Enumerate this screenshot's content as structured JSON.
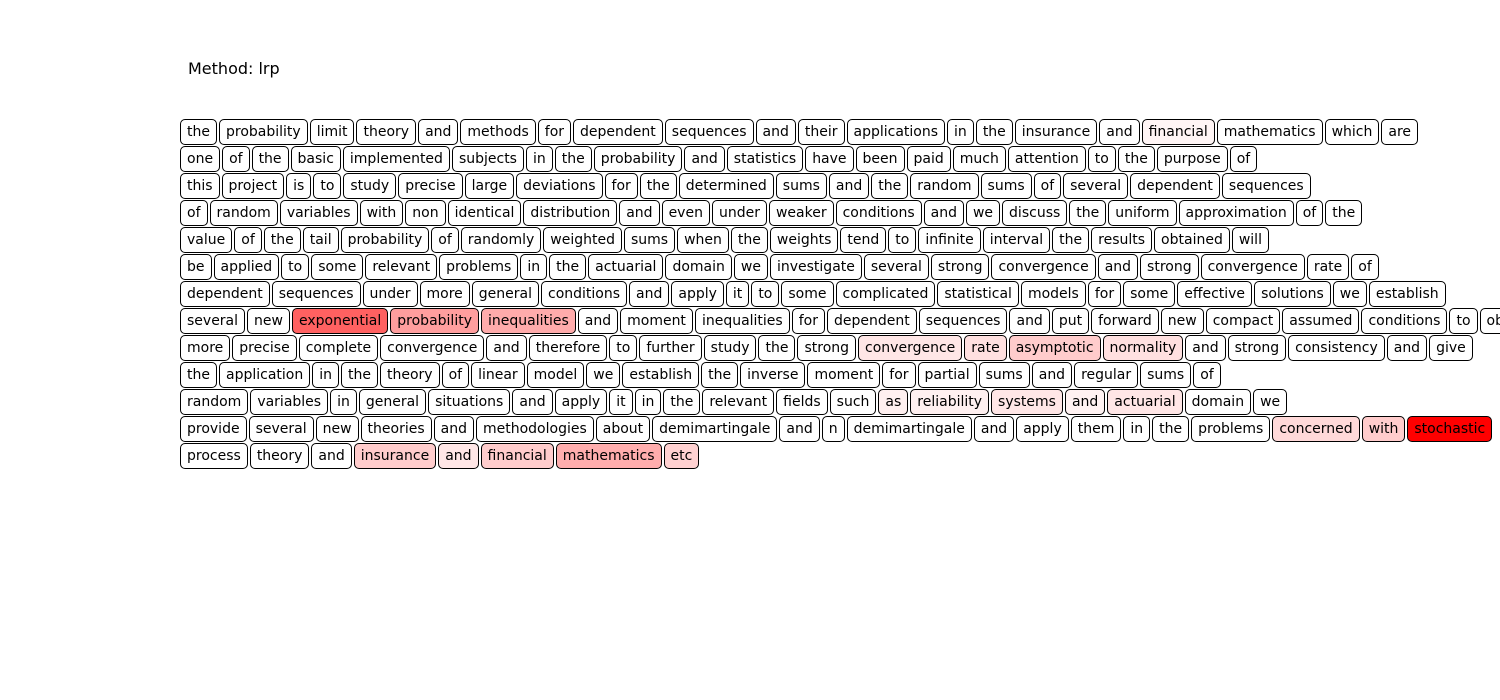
{
  "title": "Method: lrp",
  "rows": [
    [
      [
        "the",
        0
      ],
      [
        "probability",
        0
      ],
      [
        "limit",
        0
      ],
      [
        "theory",
        0
      ],
      [
        "and",
        0
      ],
      [
        "methods",
        0
      ],
      [
        "for",
        0
      ],
      [
        "dependent",
        0
      ],
      [
        "sequences",
        0
      ],
      [
        "and",
        0
      ],
      [
        "their",
        0
      ],
      [
        "applications",
        0
      ],
      [
        "in",
        0
      ],
      [
        "the",
        0
      ],
      [
        "insurance",
        0
      ],
      [
        "and",
        0
      ],
      [
        "financial",
        0.04
      ],
      [
        "mathematics",
        0
      ],
      [
        "which",
        0
      ],
      [
        "are",
        0
      ]
    ],
    [
      [
        "one",
        0
      ],
      [
        "of",
        0
      ],
      [
        "the",
        0
      ],
      [
        "basic",
        0
      ],
      [
        "implemented",
        0
      ],
      [
        "subjects",
        0
      ],
      [
        "in",
        0
      ],
      [
        "the",
        0
      ],
      [
        "probability",
        0
      ],
      [
        "and",
        0
      ],
      [
        "statistics",
        0
      ],
      [
        "have",
        0
      ],
      [
        "been",
        0
      ],
      [
        "paid",
        0
      ],
      [
        "much",
        0
      ],
      [
        "attention",
        0
      ],
      [
        "to",
        0
      ],
      [
        "the",
        0
      ],
      [
        "purpose",
        0
      ],
      [
        "of",
        0
      ]
    ],
    [
      [
        "this",
        0
      ],
      [
        "project",
        0
      ],
      [
        "is",
        0
      ],
      [
        "to",
        0
      ],
      [
        "study",
        0
      ],
      [
        "precise",
        0
      ],
      [
        "large",
        0
      ],
      [
        "deviations",
        0
      ],
      [
        "for",
        0
      ],
      [
        "the",
        0
      ],
      [
        "determined",
        0
      ],
      [
        "sums",
        0
      ],
      [
        "and",
        0
      ],
      [
        "the",
        0
      ],
      [
        "random",
        0
      ],
      [
        "sums",
        0
      ],
      [
        "of",
        0
      ],
      [
        "several",
        0
      ],
      [
        "dependent",
        0
      ],
      [
        "sequences",
        0
      ]
    ],
    [
      [
        "of",
        0
      ],
      [
        "random",
        0
      ],
      [
        "variables",
        0
      ],
      [
        "with",
        0
      ],
      [
        "non",
        0
      ],
      [
        "identical",
        0
      ],
      [
        "distribution",
        0
      ],
      [
        "and",
        0
      ],
      [
        "even",
        0
      ],
      [
        "under",
        0
      ],
      [
        "weaker",
        0
      ],
      [
        "conditions",
        0
      ],
      [
        "and",
        0
      ],
      [
        "we",
        0
      ],
      [
        "discuss",
        0
      ],
      [
        "the",
        0
      ],
      [
        "uniform",
        0
      ],
      [
        "approximation",
        0
      ],
      [
        "of",
        0
      ],
      [
        "the",
        0
      ]
    ],
    [
      [
        "value",
        0
      ],
      [
        "of",
        0
      ],
      [
        "the",
        0
      ],
      [
        "tail",
        0
      ],
      [
        "probability",
        0
      ],
      [
        "of",
        0
      ],
      [
        "randomly",
        0
      ],
      [
        "weighted",
        0
      ],
      [
        "sums",
        0
      ],
      [
        "when",
        0
      ],
      [
        "the",
        0
      ],
      [
        "weights",
        0
      ],
      [
        "tend",
        0
      ],
      [
        "to",
        0
      ],
      [
        "infinite",
        0
      ],
      [
        "interval",
        0
      ],
      [
        "the",
        0
      ],
      [
        "results",
        0
      ],
      [
        "obtained",
        0
      ],
      [
        "will",
        0
      ]
    ],
    [
      [
        "be",
        0
      ],
      [
        "applied",
        0
      ],
      [
        "to",
        0
      ],
      [
        "some",
        0
      ],
      [
        "relevant",
        0
      ],
      [
        "problems",
        0
      ],
      [
        "in",
        0
      ],
      [
        "the",
        0
      ],
      [
        "actuarial",
        0
      ],
      [
        "domain",
        0
      ],
      [
        "we",
        0
      ],
      [
        "investigate",
        0
      ],
      [
        "several",
        0
      ],
      [
        "strong",
        0
      ],
      [
        "convergence",
        0
      ],
      [
        "and",
        0
      ],
      [
        "strong",
        0
      ],
      [
        "convergence",
        0
      ],
      [
        "rate",
        0
      ],
      [
        "of",
        0
      ]
    ],
    [
      [
        "dependent",
        0
      ],
      [
        "sequences",
        0
      ],
      [
        "under",
        0
      ],
      [
        "more",
        0
      ],
      [
        "general",
        0
      ],
      [
        "conditions",
        0
      ],
      [
        "and",
        0
      ],
      [
        "apply",
        0
      ],
      [
        "it",
        0
      ],
      [
        "to",
        0
      ],
      [
        "some",
        0
      ],
      [
        "complicated",
        0
      ],
      [
        "statistical",
        0
      ],
      [
        "models",
        0
      ],
      [
        "for",
        0
      ],
      [
        "some",
        0
      ],
      [
        "effective",
        0
      ],
      [
        "solutions",
        0
      ],
      [
        "we",
        0
      ],
      [
        "establish",
        0
      ]
    ],
    [
      [
        "several",
        0
      ],
      [
        "new",
        0
      ],
      [
        "exponential",
        0.62
      ],
      [
        "probability",
        0.38
      ],
      [
        "inequalities",
        0.33
      ],
      [
        "and",
        0
      ],
      [
        "moment",
        0
      ],
      [
        "inequalities",
        0
      ],
      [
        "for",
        0
      ],
      [
        "dependent",
        0
      ],
      [
        "sequences",
        0
      ],
      [
        "and",
        0
      ],
      [
        "put",
        0
      ],
      [
        "forward",
        0
      ],
      [
        "new",
        0
      ],
      [
        "compact",
        0
      ],
      [
        "assumed",
        0
      ],
      [
        "conditions",
        0
      ],
      [
        "to",
        0
      ],
      [
        "obtain",
        0
      ]
    ],
    [
      [
        "more",
        0
      ],
      [
        "precise",
        0
      ],
      [
        "complete",
        0
      ],
      [
        "convergence",
        0
      ],
      [
        "and",
        0
      ],
      [
        "therefore",
        0
      ],
      [
        "to",
        0
      ],
      [
        "further",
        0
      ],
      [
        "study",
        0
      ],
      [
        "the",
        0
      ],
      [
        "strong",
        0
      ],
      [
        "convergence",
        0.1
      ],
      [
        "rate",
        0.12
      ],
      [
        "asymptotic",
        0.2
      ],
      [
        "normality",
        0.12
      ],
      [
        "and",
        0
      ],
      [
        "strong",
        0
      ],
      [
        "consistency",
        0
      ],
      [
        "and",
        0
      ],
      [
        "give",
        0
      ]
    ],
    [
      [
        "the",
        0
      ],
      [
        "application",
        0
      ],
      [
        "in",
        0
      ],
      [
        "the",
        0
      ],
      [
        "theory",
        0
      ],
      [
        "of",
        0
      ],
      [
        "linear",
        0
      ],
      [
        "model",
        0
      ],
      [
        "we",
        0
      ],
      [
        "establish",
        0
      ],
      [
        "the",
        0
      ],
      [
        "inverse",
        0
      ],
      [
        "moment",
        0
      ],
      [
        "for",
        0
      ],
      [
        "partial",
        0
      ],
      [
        "sums",
        0
      ],
      [
        "and",
        0
      ],
      [
        "regular",
        0
      ],
      [
        "sums",
        0
      ],
      [
        "of",
        0
      ]
    ],
    [
      [
        "random",
        0
      ],
      [
        "variables",
        0
      ],
      [
        "in",
        0
      ],
      [
        "general",
        0
      ],
      [
        "situations",
        0
      ],
      [
        "and",
        0
      ],
      [
        "apply",
        0
      ],
      [
        "it",
        0
      ],
      [
        "in",
        0
      ],
      [
        "the",
        0
      ],
      [
        "relevant",
        0
      ],
      [
        "fields",
        0
      ],
      [
        "such",
        0
      ],
      [
        "as",
        0.06
      ],
      [
        "reliability",
        0.06
      ],
      [
        "systems",
        0.1
      ],
      [
        "and",
        0.05
      ],
      [
        "actuarial",
        0.1
      ],
      [
        "domain",
        0
      ],
      [
        "we",
        0
      ]
    ],
    [
      [
        "provide",
        0
      ],
      [
        "several",
        0
      ],
      [
        "new",
        0
      ],
      [
        "theories",
        0
      ],
      [
        "and",
        0
      ],
      [
        "methodologies",
        0
      ],
      [
        "about",
        0
      ],
      [
        "demimartingale",
        0
      ],
      [
        "and",
        0
      ],
      [
        "n",
        0
      ],
      [
        "demimartingale",
        0
      ],
      [
        "and",
        0
      ],
      [
        "apply",
        0
      ],
      [
        "them",
        0
      ],
      [
        "in",
        0
      ],
      [
        "the",
        0
      ],
      [
        "problems",
        0
      ],
      [
        "concerned",
        0.15
      ],
      [
        "with",
        0.2
      ],
      [
        "stochastic",
        1.0
      ]
    ],
    [
      [
        "process",
        0
      ],
      [
        "theory",
        0
      ],
      [
        "and",
        0
      ],
      [
        "insurance",
        0.2
      ],
      [
        "and",
        0.1
      ],
      [
        "financial",
        0.2
      ],
      [
        "mathematics",
        0.32
      ],
      [
        "etc",
        0.18
      ]
    ]
  ]
}
